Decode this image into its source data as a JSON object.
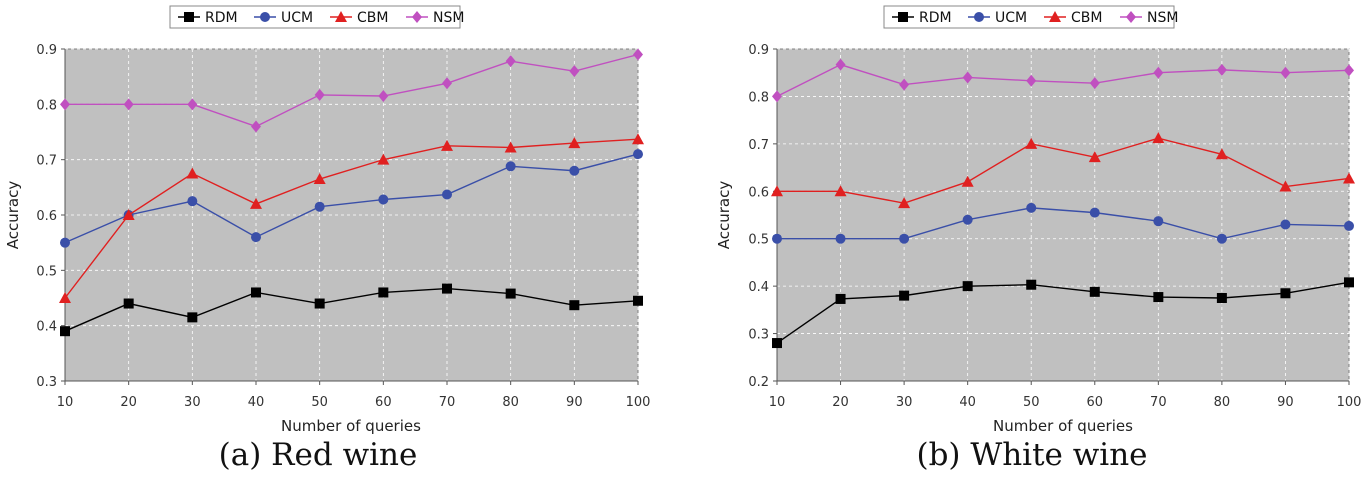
{
  "chart_data": [
    {
      "type": "line",
      "caption": "(a) Red wine",
      "xlabel": "Number of queries",
      "ylabel": "Accuracy",
      "xlim": [
        10,
        100
      ],
      "ylim": [
        0.3,
        0.9
      ],
      "x": [
        10,
        20,
        30,
        40,
        50,
        60,
        70,
        80,
        90,
        100
      ],
      "xticks": [
        "10",
        "20",
        "30",
        "40",
        "50",
        "60",
        "70",
        "80",
        "90",
        "100"
      ],
      "yticks": [
        "0.3",
        "0.4",
        "0.5",
        "0.6",
        "0.7",
        "0.8",
        "0.9"
      ],
      "grid": true,
      "legend_position": "top",
      "series": [
        {
          "name": "RDM",
          "color": "#000000",
          "marker": "square",
          "values": [
            0.39,
            0.44,
            0.415,
            0.46,
            0.44,
            0.46,
            0.467,
            0.458,
            0.437,
            0.445
          ]
        },
        {
          "name": "UCM",
          "color": "#3a4fa8",
          "marker": "circle",
          "values": [
            0.55,
            0.6,
            0.625,
            0.56,
            0.615,
            0.628,
            0.637,
            0.688,
            0.68,
            0.71
          ]
        },
        {
          "name": "CBM",
          "color": "#e02020",
          "marker": "triangle",
          "values": [
            0.45,
            0.6,
            0.675,
            0.62,
            0.665,
            0.7,
            0.725,
            0.722,
            0.73,
            0.737
          ]
        },
        {
          "name": "NSM",
          "color": "#c050c0",
          "marker": "diamond",
          "values": [
            0.8,
            0.8,
            0.8,
            0.76,
            0.817,
            0.815,
            0.838,
            0.878,
            0.86,
            0.89
          ]
        }
      ]
    },
    {
      "type": "line",
      "caption": "(b) White wine",
      "xlabel": "Number of queries",
      "ylabel": "Accuracy",
      "xlim": [
        10,
        100
      ],
      "ylim": [
        0.2,
        0.9
      ],
      "x": [
        10,
        20,
        30,
        40,
        50,
        60,
        70,
        80,
        90,
        100
      ],
      "xticks": [
        "10",
        "20",
        "30",
        "40",
        "50",
        "60",
        "70",
        "80",
        "90",
        "100"
      ],
      "yticks": [
        "0.2",
        "0.3",
        "0.4",
        "0.5",
        "0.6",
        "0.7",
        "0.8",
        "0.9"
      ],
      "grid": true,
      "legend_position": "top",
      "series": [
        {
          "name": "RDM",
          "color": "#000000",
          "marker": "square",
          "values": [
            0.28,
            0.373,
            0.38,
            0.4,
            0.403,
            0.388,
            0.377,
            0.375,
            0.385,
            0.408
          ]
        },
        {
          "name": "UCM",
          "color": "#3a4fa8",
          "marker": "circle",
          "values": [
            0.5,
            0.5,
            0.5,
            0.54,
            0.565,
            0.555,
            0.537,
            0.5,
            0.53,
            0.527
          ]
        },
        {
          "name": "CBM",
          "color": "#e02020",
          "marker": "triangle",
          "values": [
            0.6,
            0.6,
            0.575,
            0.62,
            0.7,
            0.672,
            0.712,
            0.678,
            0.61,
            0.627
          ]
        },
        {
          "name": "NSM",
          "color": "#c050c0",
          "marker": "diamond",
          "values": [
            0.8,
            0.867,
            0.825,
            0.84,
            0.833,
            0.828,
            0.85,
            0.856,
            0.85,
            0.855
          ]
        }
      ]
    }
  ]
}
